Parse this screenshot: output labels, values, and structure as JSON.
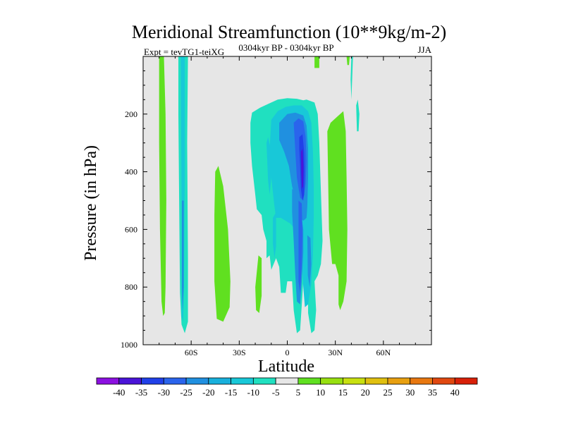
{
  "chart_data": {
    "type": "contour",
    "title": "Meridional Streamfunction (10**9kg/m-2)",
    "subtitle_left": "Expt = tevTG1-teiXG",
    "subtitle_center": "0304kyr BP - 0304kyr BP",
    "subtitle_right": "JJA",
    "xlabel": "Latitude",
    "ylabel": "Pressure (in hPa)",
    "xlim": [
      -90,
      90
    ],
    "ylim": [
      0,
      1000
    ],
    "x_ticks": [
      {
        "value": -60,
        "label": "60S"
      },
      {
        "value": -30,
        "label": "30S"
      },
      {
        "value": 0,
        "label": "0"
      },
      {
        "value": 30,
        "label": "30N"
      },
      {
        "value": 60,
        "label": "60N"
      }
    ],
    "y_ticks": [
      {
        "value": 200,
        "label": "200"
      },
      {
        "value": 400,
        "label": "400"
      },
      {
        "value": 600,
        "label": "600"
      },
      {
        "value": 800,
        "label": "800"
      },
      {
        "value": 1000,
        "label": "1000"
      }
    ],
    "background_color": "#e6e6e6",
    "colorbar": {
      "levels": [
        -40,
        -35,
        -30,
        -25,
        -20,
        -15,
        -10,
        -5,
        5,
        10,
        15,
        20,
        25,
        30,
        35,
        40
      ],
      "colors": [
        "#8b10e0",
        "#4a14d8",
        "#2040e8",
        "#2a64ec",
        "#2090e0",
        "#18b0dc",
        "#18c8d8",
        "#20e0c0",
        "#e6e6e6",
        "#60e020",
        "#98e010",
        "#c8e010",
        "#e0c010",
        "#e8a010",
        "#e87810",
        "#e04810",
        "#d82008"
      ]
    },
    "regions": [
      {
        "value": 7,
        "color": "#60e020",
        "points": [
          [
            -80,
            0
          ],
          [
            -77,
            0
          ],
          [
            -76,
            200
          ],
          [
            -75.5,
            500
          ],
          [
            -76,
            800
          ],
          [
            -76.5,
            890
          ],
          [
            -77.5,
            900
          ],
          [
            -78.5,
            850
          ],
          [
            -79.5,
            600
          ],
          [
            -80,
            300
          ]
        ]
      },
      {
        "value": -7,
        "color": "#20e0c0",
        "points": [
          [
            -68,
            0
          ],
          [
            -62,
            0
          ],
          [
            -62.5,
            300
          ],
          [
            -62,
            700
          ],
          [
            -62,
            920
          ],
          [
            -64,
            960
          ],
          [
            -66,
            930
          ],
          [
            -67,
            820
          ],
          [
            -67.5,
            500
          ],
          [
            -68,
            200
          ]
        ]
      },
      {
        "value": -12,
        "color": "#18c8d8",
        "points": [
          [
            -66.5,
            0
          ],
          [
            -64,
            0
          ],
          [
            -64,
            400
          ],
          [
            -64.5,
            800
          ],
          [
            -65,
            920
          ],
          [
            -66,
            900
          ],
          [
            -66,
            500
          ]
        ]
      },
      {
        "value": -17,
        "color": "#2090e0",
        "points": [
          [
            -65.8,
            500
          ],
          [
            -64.6,
            500
          ],
          [
            -64.6,
            800
          ],
          [
            -65.3,
            880
          ],
          [
            -65.8,
            800
          ]
        ]
      },
      {
        "value": 7,
        "color": "#60e020",
        "points": [
          [
            -45,
            400
          ],
          [
            -43,
            380
          ],
          [
            -40,
            450
          ],
          [
            -37,
            600
          ],
          [
            -35.5,
            780
          ],
          [
            -36,
            870
          ],
          [
            -40,
            920
          ],
          [
            -44,
            910
          ],
          [
            -45.5,
            780
          ],
          [
            -45.5,
            550
          ]
        ]
      },
      {
        "value": 7,
        "color": "#60e020",
        "points": [
          [
            -20,
            800
          ],
          [
            -18,
            690
          ],
          [
            -16,
            700
          ],
          [
            -16,
            830
          ],
          [
            -17.5,
            890
          ],
          [
            -19.5,
            880
          ]
        ]
      },
      {
        "value": 7,
        "color": "#60e020",
        "points": [
          [
            17,
            0
          ],
          [
            20,
            0
          ],
          [
            20,
            40
          ],
          [
            17,
            40
          ]
        ]
      },
      {
        "value": 7,
        "color": "#60e020",
        "points": [
          [
            37,
            0
          ],
          [
            39,
            0
          ],
          [
            38.5,
            30
          ],
          [
            37.5,
            30
          ]
        ]
      },
      {
        "value": 7,
        "color": "#60e020",
        "points": [
          [
            25,
            260
          ],
          [
            27,
            230
          ],
          [
            31,
            210
          ],
          [
            35,
            190
          ],
          [
            36.5,
            260
          ],
          [
            37,
            420
          ],
          [
            37.5,
            600
          ],
          [
            37,
            780
          ],
          [
            35,
            850
          ],
          [
            33,
            880
          ],
          [
            32,
            860
          ],
          [
            32,
            760
          ],
          [
            30,
            720
          ],
          [
            28,
            720
          ],
          [
            26,
            600
          ],
          [
            25.5,
            420
          ]
        ]
      },
      {
        "value": -7,
        "color": "#20e0c0",
        "points": [
          [
            -23,
            230
          ],
          [
            -22,
            195
          ],
          [
            -17,
            178
          ],
          [
            -12,
            165
          ],
          [
            -6,
            150
          ],
          [
            0,
            145
          ],
          [
            6,
            147
          ],
          [
            10,
            152
          ],
          [
            12,
            150
          ],
          [
            17,
            160
          ],
          [
            19,
            200
          ],
          [
            20,
            300
          ],
          [
            21,
            470
          ],
          [
            22,
            640
          ],
          [
            21,
            720
          ],
          [
            19,
            760
          ],
          [
            17,
            780
          ],
          [
            18,
            880
          ],
          [
            17,
            950
          ],
          [
            15,
            960
          ],
          [
            13,
            890
          ],
          [
            13,
            800
          ],
          [
            10,
            780
          ],
          [
            8,
            950
          ],
          [
            6,
            960
          ],
          [
            4,
            880
          ],
          [
            3,
            780
          ],
          [
            0,
            780
          ],
          [
            -1,
            820
          ],
          [
            -4,
            820
          ],
          [
            -5,
            730
          ],
          [
            -7,
            700
          ],
          [
            -10,
            740
          ],
          [
            -11,
            690
          ],
          [
            -13,
            700
          ],
          [
            -13,
            640
          ],
          [
            -15,
            600
          ],
          [
            -16,
            550
          ],
          [
            -19,
            530
          ],
          [
            -20,
            480
          ],
          [
            -21,
            430
          ],
          [
            -22,
            380
          ],
          [
            -23,
            300
          ]
        ]
      },
      {
        "value": -7,
        "color": "#20e0c0",
        "points": [
          [
            40,
            0
          ],
          [
            41,
            0
          ],
          [
            40.5,
            80
          ],
          [
            40,
            150
          ],
          [
            39.5,
            80
          ]
        ]
      },
      {
        "value": -7,
        "color": "#20e0c0",
        "points": [
          [
            43,
            170
          ],
          [
            44,
            150
          ],
          [
            45,
            200
          ],
          [
            44.5,
            260
          ],
          [
            43.5,
            260
          ]
        ]
      },
      {
        "value": -12,
        "color": "#18c8d8",
        "points": [
          [
            -10,
            220
          ],
          [
            -6,
            190
          ],
          [
            -1,
            175
          ],
          [
            4,
            170
          ],
          [
            9,
            170
          ],
          [
            13,
            190
          ],
          [
            15,
            230
          ],
          [
            16,
            330
          ],
          [
            16.5,
            450
          ],
          [
            16.5,
            560
          ],
          [
            16,
            690
          ],
          [
            15,
            790
          ],
          [
            13,
            860
          ],
          [
            11,
            870
          ],
          [
            10,
            800
          ],
          [
            9,
            700
          ],
          [
            7,
            640
          ],
          [
            5,
            600
          ],
          [
            2,
            580
          ],
          [
            -1,
            570
          ],
          [
            -4,
            560
          ],
          [
            -7,
            560
          ],
          [
            -8,
            520
          ],
          [
            -10,
            420
          ],
          [
            -11,
            320
          ]
        ]
      },
      {
        "value": -12,
        "color": "#18c8d8",
        "points": [
          [
            -13,
            300
          ],
          [
            -12,
            280
          ],
          [
            -10,
            330
          ],
          [
            -10,
            420
          ],
          [
            -11,
            480
          ],
          [
            -12,
            430
          ]
        ]
      },
      {
        "value": -12,
        "color": "#18c8d8",
        "points": [
          [
            -9,
            560
          ],
          [
            -7,
            540
          ],
          [
            -7,
            660
          ],
          [
            -8,
            700
          ],
          [
            -9,
            650
          ]
        ]
      },
      {
        "value": -17,
        "color": "#2090e0",
        "points": [
          [
            -5,
            230
          ],
          [
            0,
            200
          ],
          [
            5,
            195
          ],
          [
            10,
            205
          ],
          [
            12,
            240
          ],
          [
            13,
            320
          ],
          [
            13,
            420
          ],
          [
            12.5,
            520
          ],
          [
            12,
            560
          ],
          [
            10,
            570
          ],
          [
            8,
            560
          ],
          [
            6,
            510
          ],
          [
            3,
            450
          ],
          [
            1,
            380
          ],
          [
            -2,
            330
          ],
          [
            -5,
            290
          ]
        ]
      },
      {
        "value": -17,
        "color": "#2090e0",
        "points": [
          [
            3,
            460
          ],
          [
            6,
            470
          ],
          [
            8,
            520
          ],
          [
            10,
            600
          ],
          [
            10,
            680
          ],
          [
            9,
            780
          ],
          [
            8,
            860
          ],
          [
            6,
            850
          ],
          [
            5,
            760
          ],
          [
            4,
            640
          ],
          [
            3,
            540
          ]
        ]
      },
      {
        "value": -17,
        "color": "#2090e0",
        "points": [
          [
            12.5,
            620
          ],
          [
            14.5,
            630
          ],
          [
            15,
            720
          ],
          [
            14,
            800
          ],
          [
            12.8,
            760
          ]
        ]
      },
      {
        "value": -22,
        "color": "#2a64ec",
        "points": [
          [
            4,
            230
          ],
          [
            7,
            215
          ],
          [
            10,
            225
          ],
          [
            11.5,
            280
          ],
          [
            12,
            360
          ],
          [
            11.5,
            440
          ],
          [
            10,
            500
          ],
          [
            8,
            490
          ],
          [
            6,
            420
          ],
          [
            5,
            330
          ]
        ]
      },
      {
        "value": -22,
        "color": "#2a64ec",
        "points": [
          [
            7,
            500
          ],
          [
            9,
            510
          ],
          [
            9.5,
            620
          ],
          [
            9,
            720
          ],
          [
            8,
            820
          ],
          [
            7,
            780
          ],
          [
            7,
            640
          ]
        ]
      },
      {
        "value": -27,
        "color": "#2040e8",
        "points": [
          [
            7.5,
            280
          ],
          [
            9.5,
            270
          ],
          [
            10.5,
            330
          ],
          [
            10.8,
            400
          ],
          [
            10.5,
            480
          ],
          [
            9.5,
            500
          ],
          [
            8.5,
            460
          ],
          [
            8,
            380
          ],
          [
            7.5,
            320
          ]
        ]
      },
      {
        "value": -32,
        "color": "#4a14d8",
        "points": [
          [
            8.6,
            330
          ],
          [
            9.6,
            320
          ],
          [
            10.1,
            380
          ],
          [
            9.9,
            450
          ],
          [
            9.1,
            460
          ],
          [
            8.7,
            400
          ]
        ]
      }
    ]
  }
}
